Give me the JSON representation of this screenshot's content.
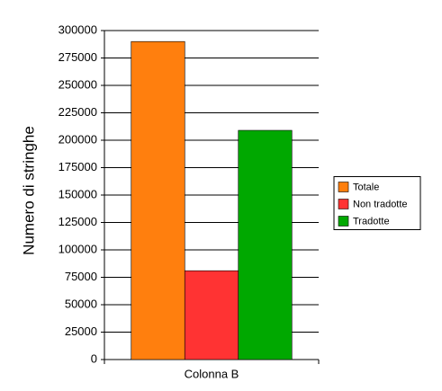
{
  "chart_data": {
    "type": "bar",
    "y_label": "Numero di stringhe",
    "categories": [
      "Colonna B"
    ],
    "series": [
      {
        "name": "Totale",
        "color": "#ff7f0e",
        "values": [
          290000
        ]
      },
      {
        "name": "Non tradotte",
        "color": "#ff3333",
        "values": [
          81000
        ]
      },
      {
        "name": "Tradotte",
        "color": "#00a800",
        "values": [
          209000
        ]
      }
    ],
    "ylim": [
      0,
      300000
    ],
    "yticks": [
      0,
      25000,
      50000,
      75000,
      100000,
      125000,
      150000,
      175000,
      200000,
      225000,
      250000,
      275000,
      300000
    ],
    "grid": true,
    "legend": "right"
  }
}
